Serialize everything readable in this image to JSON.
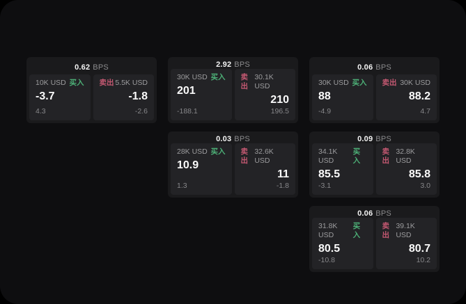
{
  "colors": {
    "page_background": "#0e0e10",
    "card_background": "#1a1a1c",
    "panel_background": "#232326",
    "buy_accent": "#4db077",
    "sell_accent": "#c35871"
  },
  "bps_unit_label": "BPS",
  "buy_tag_label": "买入",
  "sell_tag_label": "卖出",
  "cards": [
    {
      "bps_value": "0.62",
      "grid": {
        "row": 1,
        "col": 1
      },
      "buy": {
        "amount": "10K USD",
        "price": "-3.7",
        "delta": "4.3"
      },
      "sell": {
        "amount": "5.5K USD",
        "price": "-1.8",
        "delta": "-2.6"
      }
    },
    {
      "bps_value": "2.92",
      "grid": {
        "row": 1,
        "col": 2
      },
      "buy": {
        "amount": "30K USD",
        "price": "201",
        "delta": "-188.1"
      },
      "sell": {
        "amount": "30.1K USD",
        "price": "210",
        "delta": "196.5"
      }
    },
    {
      "bps_value": "0.06",
      "grid": {
        "row": 1,
        "col": 3
      },
      "buy": {
        "amount": "30K USD",
        "price": "88",
        "delta": "-4.9"
      },
      "sell": {
        "amount": "30K USD",
        "price": "88.2",
        "delta": "4.7"
      }
    },
    {
      "bps_value": "0.03",
      "grid": {
        "row": 2,
        "col": 2
      },
      "buy": {
        "amount": "28K USD",
        "price": "10.9",
        "delta": "1.3"
      },
      "sell": {
        "amount": "32.6K USD",
        "price": "11",
        "delta": "-1.8"
      }
    },
    {
      "bps_value": "0.09",
      "grid": {
        "row": 2,
        "col": 3
      },
      "buy": {
        "amount": "34.1K USD",
        "price": "85.5",
        "delta": "-3.1"
      },
      "sell": {
        "amount": "32.8K USD",
        "price": "85.8",
        "delta": "3.0"
      }
    },
    {
      "bps_value": "0.06",
      "grid": {
        "row": 3,
        "col": 3
      },
      "buy": {
        "amount": "31.8K USD",
        "price": "80.5",
        "delta": "-10.8"
      },
      "sell": {
        "amount": "39.1K USD",
        "price": "80.7",
        "delta": "10.2"
      }
    }
  ]
}
